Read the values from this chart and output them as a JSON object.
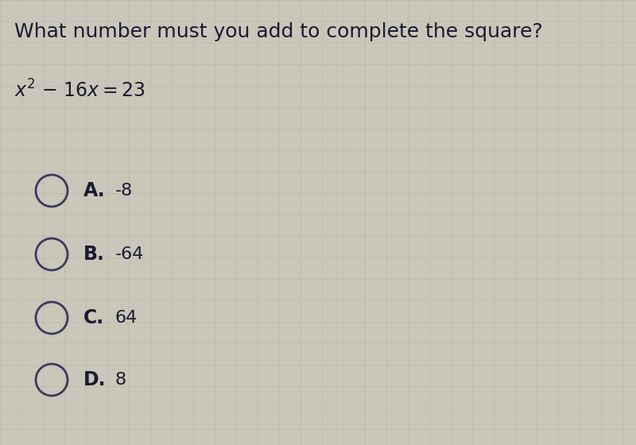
{
  "title": "What number must you add to complete the square?",
  "options": [
    {
      "label": "A.",
      "value": "-8"
    },
    {
      "label": "B.",
      "value": "-64"
    },
    {
      "label": "C.",
      "value": "64"
    },
    {
      "label": "D.",
      "value": "8"
    }
  ],
  "background_color": "#cac6ba",
  "text_color": "#1a1a30",
  "circle_color": "#3a3a5c",
  "title_fontsize": 18,
  "equation_fontsize": 17,
  "option_label_fontsize": 17,
  "option_value_fontsize": 16,
  "grid_color": "#b5b0a3",
  "grid_linewidth": 0.6,
  "grid_alpha": 0.5
}
